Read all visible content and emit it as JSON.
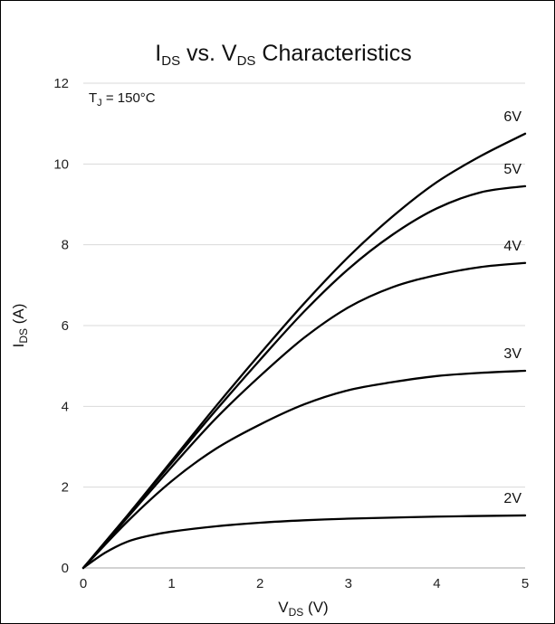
{
  "chart_data": {
    "type": "line",
    "title": {
      "main": "I",
      "sub": "DS",
      "rest": " vs. V",
      "sub2": "DS",
      "end": " Characteristics"
    },
    "annotation": {
      "main": "T",
      "sub": "J",
      "rest": " = 150°C"
    },
    "xlabel": {
      "main": "V",
      "sub": "DS",
      "rest": " (V)"
    },
    "ylabel": {
      "main": "I",
      "sub": "DS",
      "rest": " (A)"
    },
    "xlim": [
      0,
      5
    ],
    "ylim": [
      0,
      12
    ],
    "x_ticks": [
      "0",
      "1",
      "2",
      "3",
      "4",
      "5"
    ],
    "y_ticks": [
      "0",
      "2",
      "4",
      "6",
      "8",
      "10",
      "12"
    ],
    "grid": "horizontal",
    "line_color": "#000000",
    "series": [
      {
        "name": "6V",
        "x": [
          0,
          0.5,
          1,
          1.5,
          2,
          2.5,
          3,
          3.5,
          4,
          4.5,
          5
        ],
        "y": [
          0,
          1.3,
          2.65,
          4.0,
          5.3,
          6.55,
          7.7,
          8.7,
          9.55,
          10.2,
          10.75
        ]
      },
      {
        "name": "5V",
        "x": [
          0,
          0.5,
          1,
          1.5,
          2,
          2.5,
          3,
          3.5,
          4,
          4.5,
          5
        ],
        "y": [
          0,
          1.3,
          2.6,
          3.9,
          5.15,
          6.35,
          7.4,
          8.25,
          8.9,
          9.3,
          9.45
        ]
      },
      {
        "name": "4V",
        "x": [
          0,
          0.5,
          1,
          1.5,
          2,
          2.5,
          3,
          3.5,
          4,
          4.5,
          5
        ],
        "y": [
          0,
          1.25,
          2.5,
          3.7,
          4.75,
          5.7,
          6.45,
          6.95,
          7.25,
          7.45,
          7.55
        ]
      },
      {
        "name": "3V",
        "x": [
          0,
          0.5,
          1,
          1.5,
          2,
          2.5,
          3,
          3.5,
          4,
          4.5,
          5
        ],
        "y": [
          0,
          1.15,
          2.15,
          2.95,
          3.55,
          4.05,
          4.4,
          4.6,
          4.75,
          4.83,
          4.88
        ]
      },
      {
        "name": "2V",
        "x": [
          0,
          0.25,
          0.5,
          0.75,
          1,
          1.5,
          2,
          2.5,
          3,
          4,
          5
        ],
        "y": [
          0,
          0.38,
          0.65,
          0.8,
          0.9,
          1.03,
          1.12,
          1.18,
          1.22,
          1.27,
          1.3
        ]
      }
    ]
  }
}
